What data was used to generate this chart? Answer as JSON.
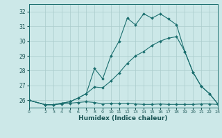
{
  "xlabel": "Humidex (Indice chaleur)",
  "background_color": "#cce8e8",
  "line_color": "#1a6e6e",
  "grid_color": "#aacccc",
  "xlim": [
    0,
    23
  ],
  "ylim": [
    25.5,
    32.5
  ],
  "yticks": [
    26,
    27,
    28,
    29,
    30,
    31,
    32
  ],
  "xticks": [
    0,
    2,
    3,
    4,
    5,
    6,
    7,
    8,
    9,
    10,
    11,
    12,
    13,
    14,
    15,
    16,
    17,
    18,
    19,
    20,
    21,
    22,
    23
  ],
  "line1_x": [
    0,
    2,
    3,
    4,
    5,
    6,
    7,
    8,
    9,
    10,
    11,
    12,
    13,
    14,
    15,
    16,
    17,
    18,
    19,
    20,
    21,
    22,
    23
  ],
  "line1_y": [
    26.0,
    25.7,
    25.7,
    25.75,
    25.8,
    25.85,
    25.9,
    25.85,
    25.75,
    25.8,
    25.78,
    25.78,
    25.75,
    25.72,
    25.72,
    25.75,
    25.72,
    25.72,
    25.72,
    25.72,
    25.75,
    25.75,
    25.72
  ],
  "line2_x": [
    0,
    2,
    3,
    4,
    5,
    6,
    7,
    8,
    9,
    10,
    11,
    12,
    13,
    14,
    15,
    16,
    17,
    18,
    19,
    20,
    21,
    22,
    23
  ],
  "line2_y": [
    26.0,
    25.7,
    25.7,
    25.8,
    25.9,
    26.15,
    26.45,
    26.9,
    26.85,
    27.3,
    27.85,
    28.5,
    29.0,
    29.3,
    29.7,
    30.0,
    30.2,
    30.3,
    29.3,
    27.9,
    26.95,
    26.45,
    25.78
  ],
  "line3_x": [
    0,
    2,
    3,
    4,
    5,
    6,
    7,
    8,
    9,
    10,
    11,
    12,
    13,
    14,
    15,
    16,
    17,
    18,
    19,
    20,
    21,
    22,
    23
  ],
  "line3_y": [
    26.0,
    25.7,
    25.7,
    25.8,
    25.9,
    26.15,
    26.45,
    28.15,
    27.45,
    29.0,
    30.0,
    31.55,
    31.1,
    31.85,
    31.55,
    31.85,
    31.5,
    31.1,
    29.3,
    27.9,
    26.95,
    26.45,
    25.78
  ]
}
